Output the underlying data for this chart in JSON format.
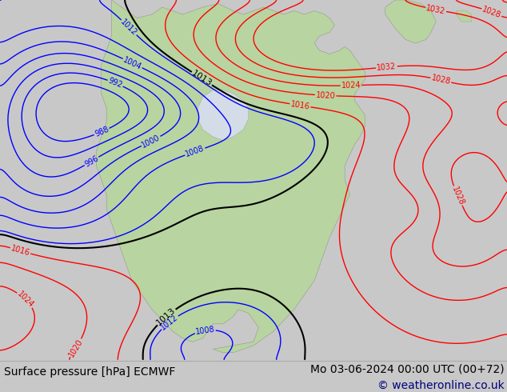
{
  "title_left": "Surface pressure [hPa] ECMWF",
  "title_right": "Mo 03-06-2024 00:00 UTC (00+72)",
  "copyright": "© weatheronline.co.uk",
  "bg_color": "#c8c8c8",
  "map_bg": "#d4dce8",
  "land_color": "#b8d4a0",
  "font_size_bottom": 10,
  "bottom_bar_color": "#ffffff",
  "contour_blue_levels": [
    988,
    992,
    996,
    1000,
    1004,
    1008,
    1012
  ],
  "contour_black_levels": [
    1013
  ],
  "contour_red_levels": [
    1016,
    1020,
    1024,
    1028,
    1032
  ],
  "contour_linewidth": 1.0,
  "contour_black_linewidth": 1.5,
  "label_fontsize": 7
}
